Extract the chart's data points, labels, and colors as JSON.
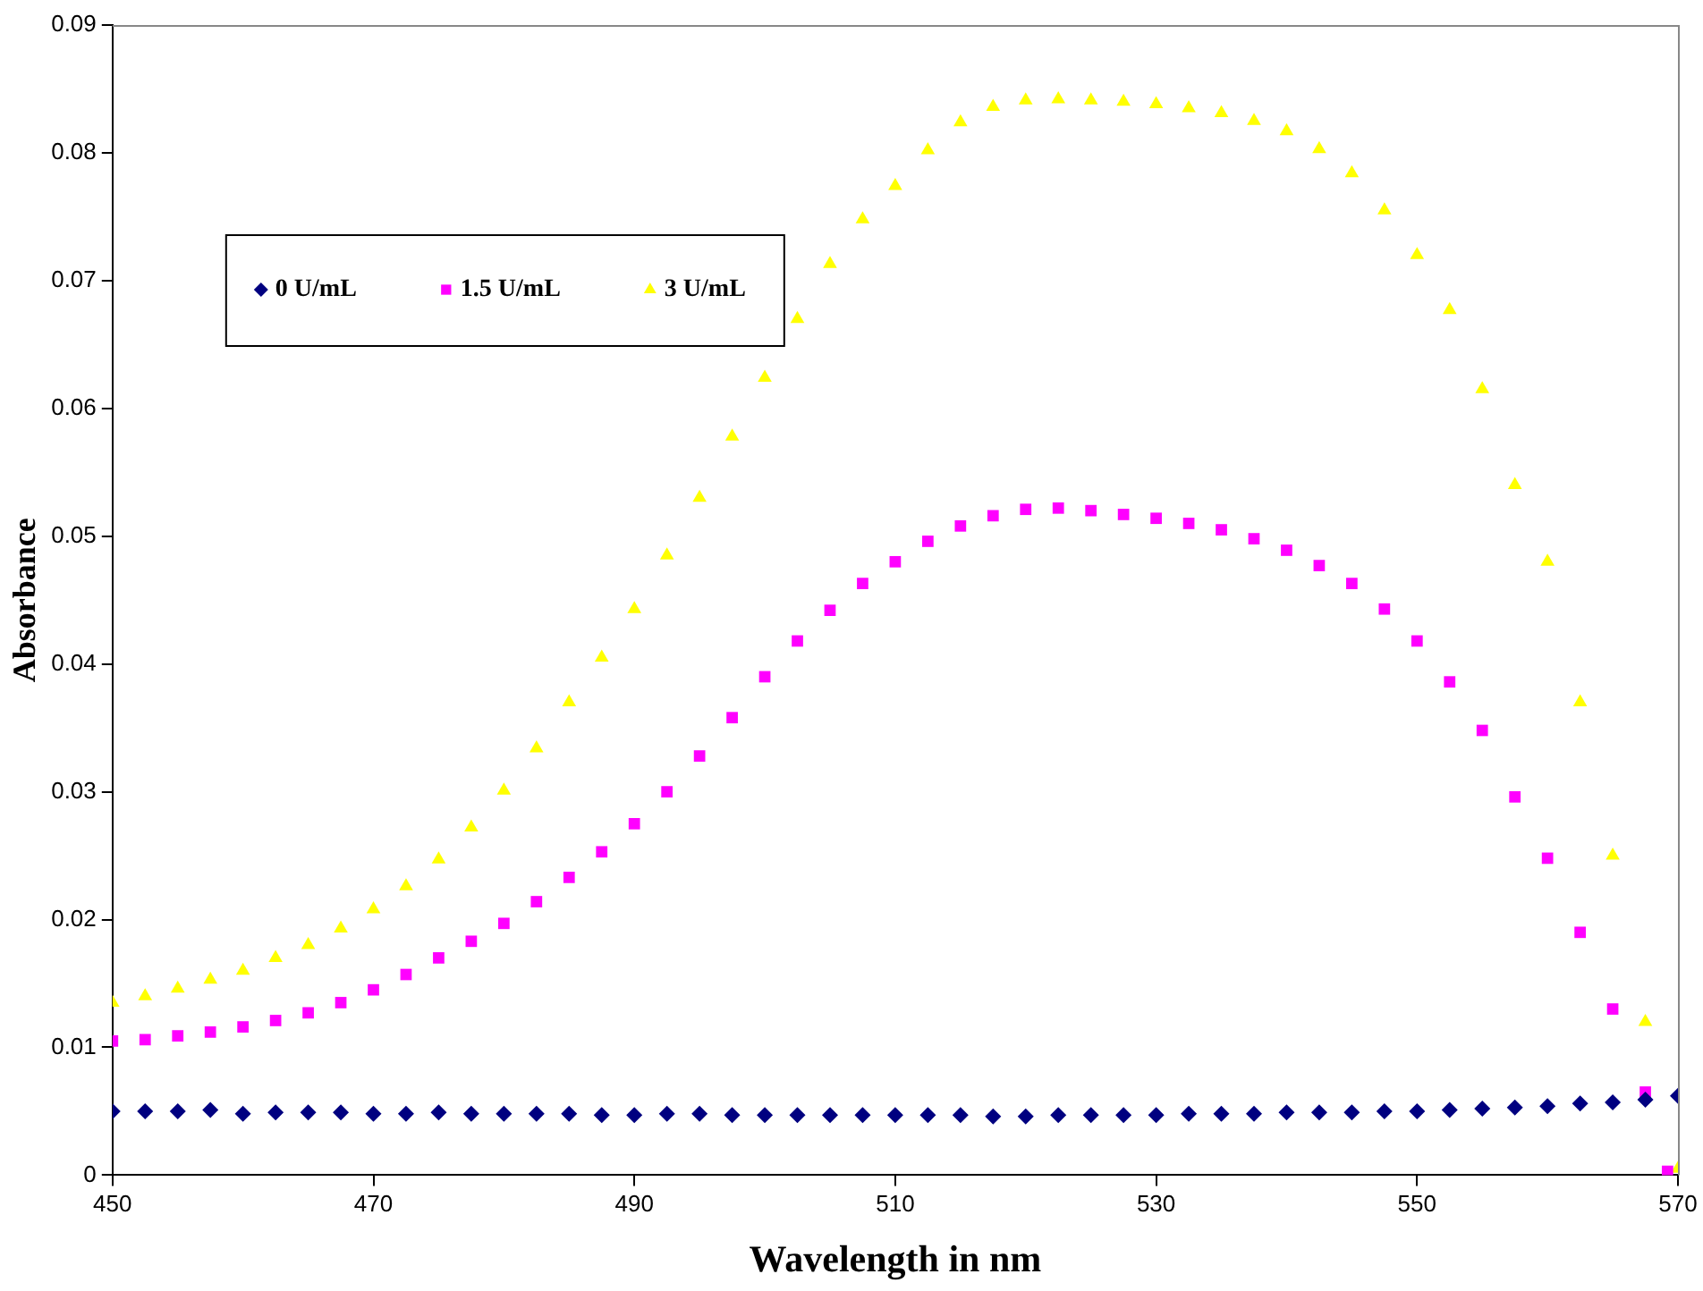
{
  "chart_data": {
    "type": "scatter",
    "xlabel": "Wavelength in nm",
    "ylabel": "Absorbance",
    "xlim": [
      450,
      570
    ],
    "xticks": [
      450,
      470,
      490,
      510,
      530,
      550,
      570
    ],
    "ylim": [
      0,
      0.09
    ],
    "yticks": [
      0,
      0.01,
      0.02,
      0.03,
      0.04,
      0.05,
      0.06,
      0.07,
      0.08,
      0.09
    ],
    "grid": false,
    "legend": "top left",
    "series": [
      {
        "name": "0 U/mL",
        "color": "#000080",
        "marker": "diamond",
        "x": [
          450,
          452.5,
          455,
          457.5,
          460,
          462.5,
          465,
          467.5,
          470,
          472.5,
          475,
          477.5,
          480,
          482.5,
          485,
          487.5,
          490,
          492.5,
          495,
          497.5,
          500,
          502.5,
          505,
          507.5,
          510,
          512.5,
          515,
          517.5,
          520,
          522.5,
          525,
          527.5,
          530,
          532.5,
          535,
          537.5,
          540,
          542.5,
          545,
          547.5,
          550,
          552.5,
          555,
          557.5,
          560,
          562.5,
          565,
          567.5,
          570
        ],
        "values": [
          0.005,
          0.005,
          0.005,
          0.0051,
          0.0048,
          0.0049,
          0.0049,
          0.0049,
          0.0048,
          0.0048,
          0.0049,
          0.0048,
          0.0048,
          0.0048,
          0.0048,
          0.0047,
          0.0047,
          0.0048,
          0.0048,
          0.0047,
          0.0047,
          0.0047,
          0.0047,
          0.0047,
          0.0047,
          0.0047,
          0.0047,
          0.0046,
          0.0046,
          0.0047,
          0.0047,
          0.0047,
          0.0047,
          0.0048,
          0.0048,
          0.0048,
          0.0049,
          0.0049,
          0.0049,
          0.005,
          0.005,
          0.0051,
          0.0052,
          0.0053,
          0.0054,
          0.0056,
          0.0057,
          0.0059,
          0.0062
        ]
      },
      {
        "name": "1.5 U/mL",
        "color": "#ff00ff",
        "marker": "square",
        "x": [
          450,
          452.5,
          455,
          457.5,
          460,
          462.5,
          465,
          467.5,
          470,
          472.5,
          475,
          477.5,
          480,
          482.5,
          485,
          487.5,
          490,
          492.5,
          495,
          497.5,
          500,
          502.5,
          505,
          507.5,
          510,
          512.5,
          515,
          517.5,
          520,
          522.5,
          525,
          527.5,
          530,
          532.5,
          535,
          537.5,
          540,
          542.5,
          545,
          547.5,
          550,
          552.5,
          555,
          557.5,
          560,
          562.5,
          565,
          567.5,
          569.2
        ],
        "values": [
          0.0105,
          0.0106,
          0.0109,
          0.0112,
          0.0116,
          0.0121,
          0.0127,
          0.0135,
          0.0145,
          0.0157,
          0.017,
          0.0183,
          0.0197,
          0.0214,
          0.0233,
          0.0253,
          0.0275,
          0.03,
          0.0328,
          0.0358,
          0.039,
          0.0418,
          0.0442,
          0.0463,
          0.048,
          0.0496,
          0.0508,
          0.0516,
          0.0521,
          0.0522,
          0.052,
          0.0517,
          0.0514,
          0.051,
          0.0505,
          0.0498,
          0.0489,
          0.0477,
          0.0463,
          0.0443,
          0.0418,
          0.0386,
          0.0348,
          0.0296,
          0.0248,
          0.019,
          0.013,
          0.0065,
          0.0003
        ]
      },
      {
        "name": "3 U/mL",
        "color": "#ffff00",
        "marker": "triangle",
        "x": [
          450,
          452.5,
          455,
          457.5,
          460,
          462.5,
          465,
          467.5,
          470,
          472.5,
          475,
          477.5,
          480,
          482.5,
          485,
          487.5,
          490,
          492.5,
          495,
          497.5,
          500,
          502.5,
          505,
          507.5,
          510,
          512.5,
          515,
          517.5,
          520,
          522.5,
          525,
          527.5,
          530,
          532.5,
          535,
          537.5,
          540,
          542.5,
          545,
          547.5,
          550,
          552.5,
          555,
          557.5,
          560,
          562.5,
          565,
          567.5,
          570
        ],
        "values": [
          0.0135,
          0.014,
          0.0146,
          0.0153,
          0.016,
          0.017,
          0.018,
          0.0193,
          0.0208,
          0.0226,
          0.0247,
          0.0272,
          0.0301,
          0.0334,
          0.037,
          0.0405,
          0.0443,
          0.0485,
          0.053,
          0.0578,
          0.0624,
          0.067,
          0.0713,
          0.0748,
          0.0774,
          0.0802,
          0.0824,
          0.0836,
          0.0841,
          0.0842,
          0.0841,
          0.084,
          0.0838,
          0.0835,
          0.0831,
          0.0825,
          0.0817,
          0.0803,
          0.0784,
          0.0755,
          0.072,
          0.0677,
          0.0615,
          0.054,
          0.048,
          0.037,
          0.025,
          0.012,
          0.0005
        ]
      }
    ]
  }
}
